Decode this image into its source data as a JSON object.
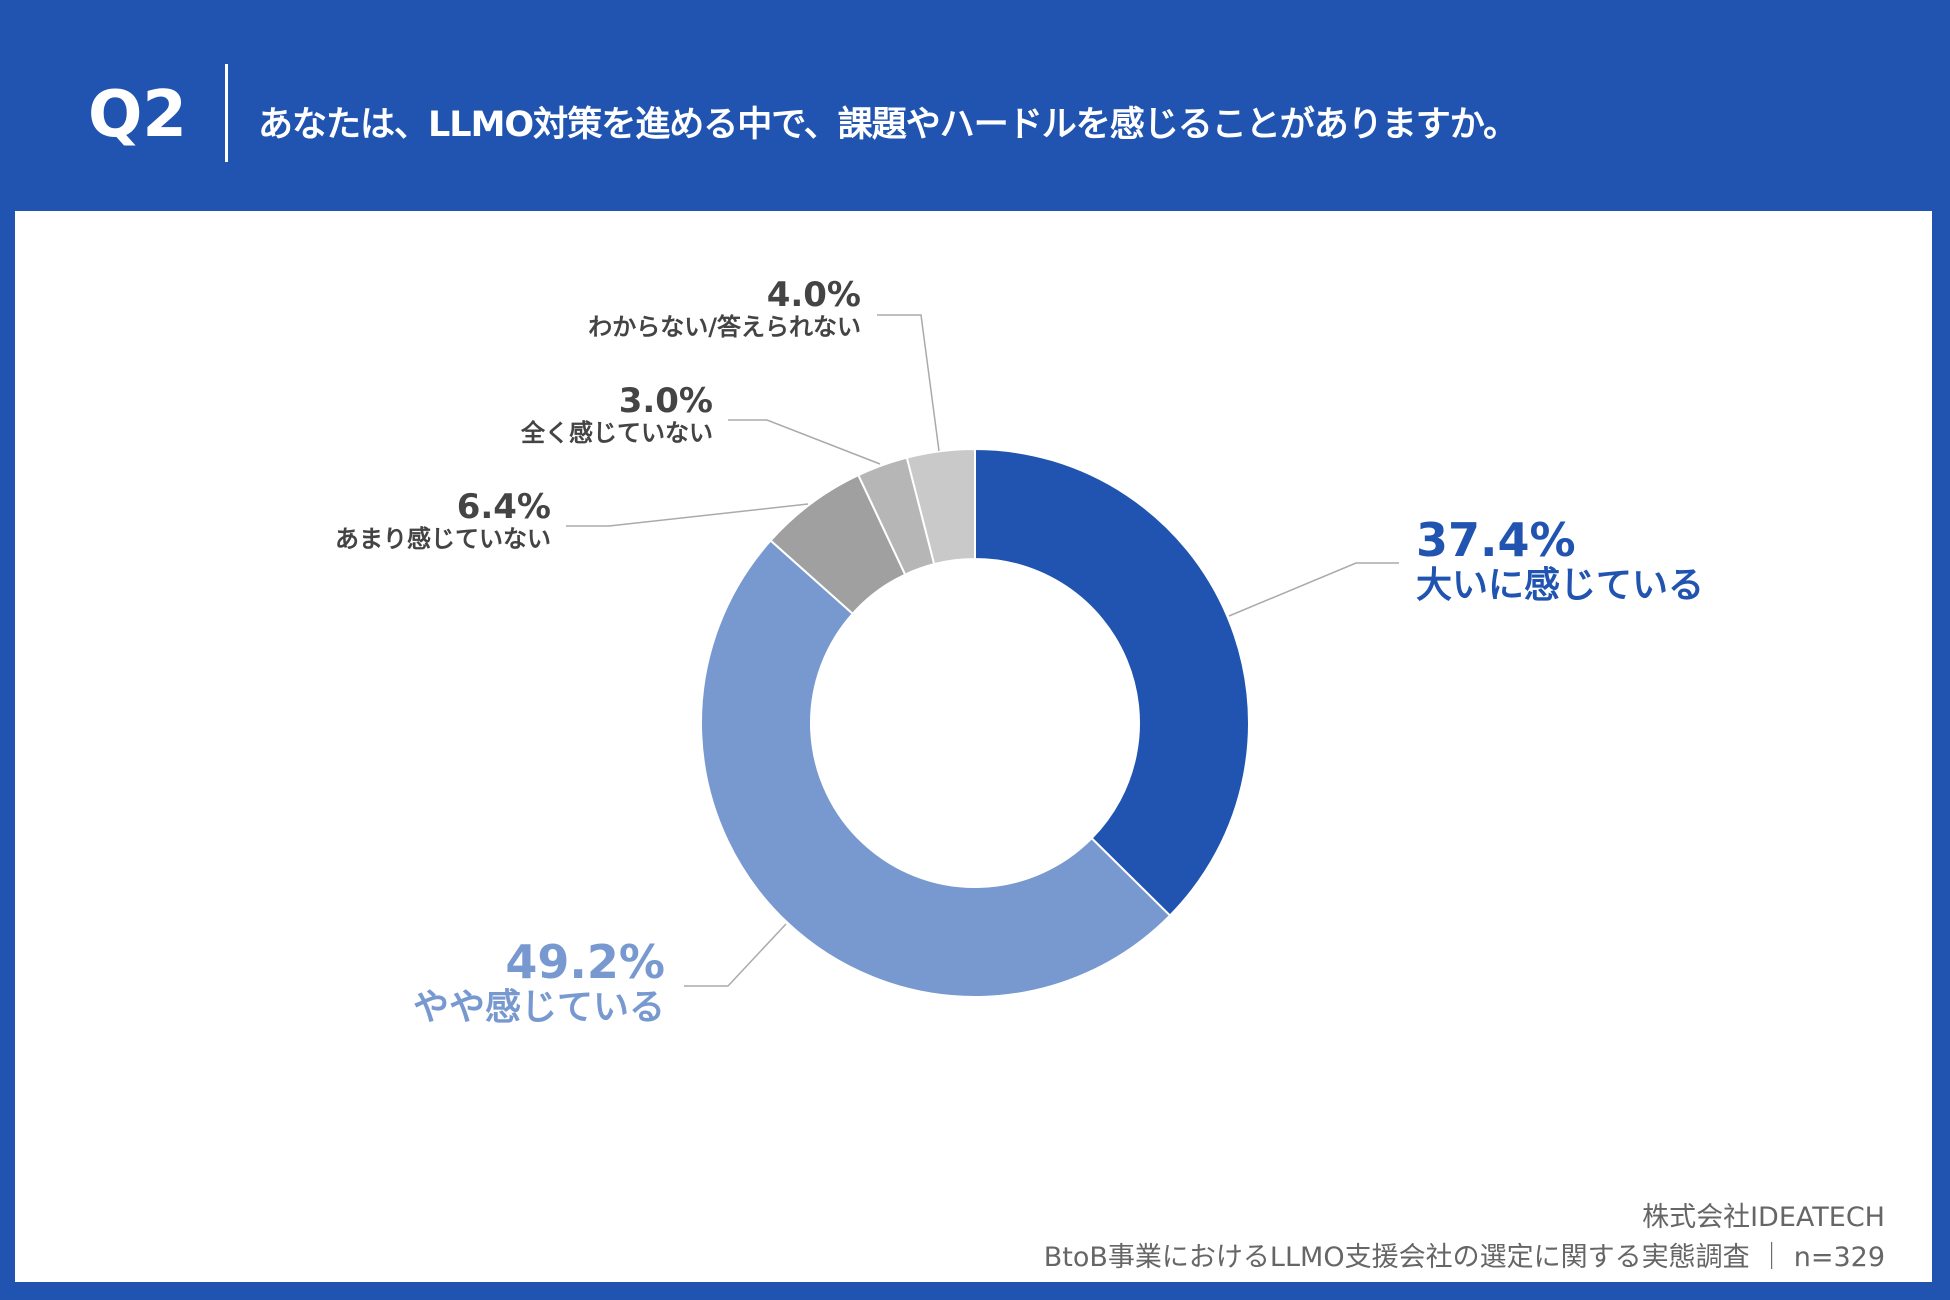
{
  "header": {
    "question_number": "Q2",
    "question": "あなたは、LLMO対策を進める中で、課題やハードルを感じることがありますか。"
  },
  "chart_data": {
    "type": "pie",
    "donut": true,
    "start": "12 o'clock, clockwise",
    "slices": [
      {
        "label": "大いに感じている",
        "value": 37.4,
        "display": "37.4%",
        "color": "#2054b0"
      },
      {
        "label": "やや感じている",
        "value": 49.2,
        "display": "49.2%",
        "color": "#7899d0"
      },
      {
        "label": "あまり感じていない",
        "value": 6.4,
        "display": "6.4%",
        "color": "#a0a0a0"
      },
      {
        "label": "全く感じていない",
        "value": 3.0,
        "display": "3.0%",
        "color": "#b6b6b6"
      },
      {
        "label": "わからない/答えられない",
        "value": 4.0,
        "display": "4.0%",
        "color": "#c9c9c9"
      }
    ]
  },
  "footer": {
    "company": "株式会社IDEATECH",
    "source": "BtoB事業におけるLLMO支援会社の選定に関する実態調査 ｜ n=329"
  }
}
